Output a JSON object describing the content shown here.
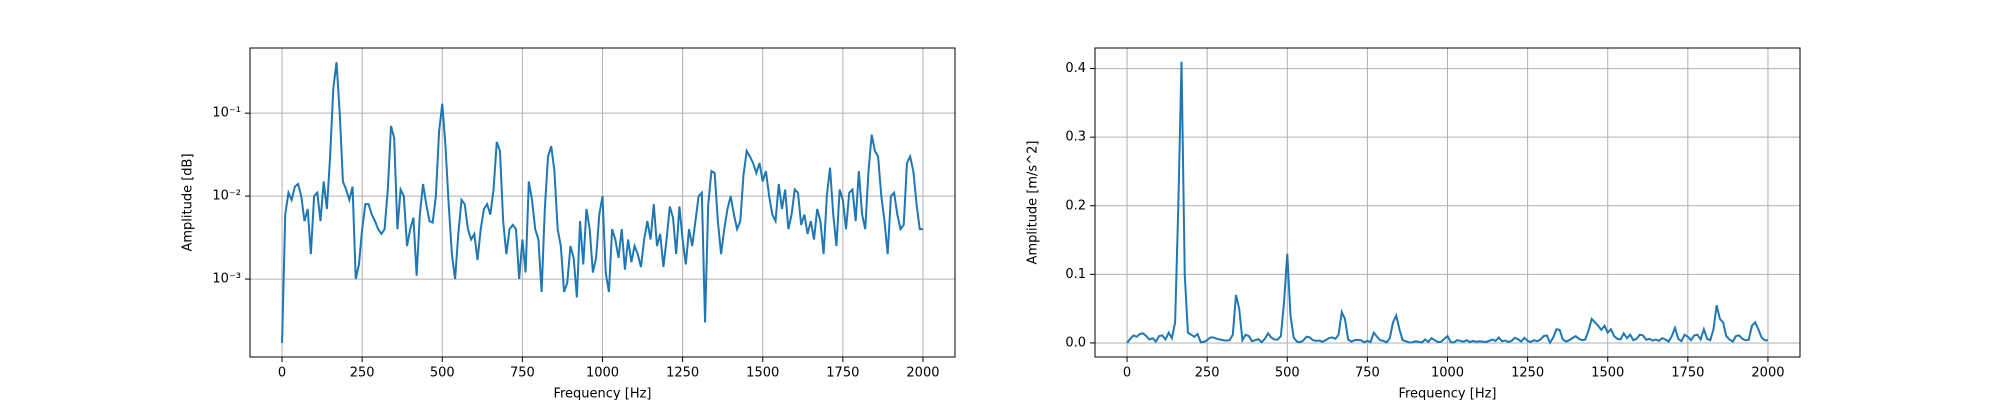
{
  "chart_data": [
    {
      "type": "line",
      "xlabel": "Frequency [Hz]",
      "ylabel": "Amplitude [dB]",
      "ylog": true,
      "grid": true,
      "color": "#1f77b4",
      "xlim": [
        -100,
        2100
      ],
      "xticks": [
        0,
        250,
        500,
        750,
        1000,
        1250,
        1500,
        1750,
        2000
      ],
      "ylim": [
        0.000115,
        0.61
      ],
      "yticks": [
        {
          "value": 0.001,
          "label": "10⁻³"
        },
        {
          "value": 0.01,
          "label": "10⁻²"
        },
        {
          "value": 0.1,
          "label": "10⁻¹"
        }
      ],
      "x": [
        0,
        10,
        20,
        30,
        40,
        50,
        60,
        70,
        80,
        90,
        100,
        110,
        120,
        130,
        140,
        150,
        160,
        170,
        180,
        190,
        200,
        210,
        220,
        230,
        240,
        250,
        260,
        270,
        280,
        290,
        300,
        310,
        320,
        330,
        340,
        350,
        360,
        370,
        380,
        390,
        400,
        410,
        420,
        430,
        440,
        450,
        460,
        470,
        480,
        490,
        500,
        510,
        520,
        530,
        540,
        550,
        560,
        570,
        580,
        590,
        600,
        610,
        620,
        630,
        640,
        650,
        660,
        670,
        680,
        690,
        700,
        710,
        720,
        730,
        740,
        750,
        760,
        770,
        780,
        790,
        800,
        810,
        820,
        830,
        840,
        850,
        860,
        870,
        880,
        890,
        900,
        910,
        920,
        930,
        940,
        950,
        960,
        970,
        980,
        990,
        1000,
        1010,
        1020,
        1030,
        1040,
        1050,
        1060,
        1070,
        1080,
        1090,
        1100,
        1110,
        1120,
        1130,
        1140,
        1150,
        1160,
        1170,
        1180,
        1190,
        1200,
        1210,
        1220,
        1230,
        1240,
        1250,
        1260,
        1270,
        1280,
        1290,
        1300,
        1310,
        1320,
        1330,
        1340,
        1350,
        1360,
        1370,
        1380,
        1390,
        1400,
        1410,
        1420,
        1430,
        1440,
        1450,
        1460,
        1470,
        1480,
        1490,
        1500,
        1510,
        1520,
        1530,
        1540,
        1550,
        1560,
        1570,
        1580,
        1590,
        1600,
        1610,
        1620,
        1630,
        1640,
        1650,
        1660,
        1670,
        1680,
        1690,
        1700,
        1710,
        1720,
        1730,
        1740,
        1750,
        1760,
        1770,
        1780,
        1790,
        1800,
        1810,
        1820,
        1830,
        1840,
        1850,
        1860,
        1870,
        1880,
        1890,
        1900,
        1910,
        1920,
        1930,
        1940,
        1950,
        1960,
        1970,
        1980,
        1990,
        2000
      ],
      "values": [
        0.00017,
        0.006,
        0.011,
        0.009,
        0.013,
        0.014,
        0.01,
        0.005,
        0.007,
        0.002,
        0.01,
        0.011,
        0.005,
        0.015,
        0.007,
        0.03,
        0.2,
        0.41,
        0.1,
        0.015,
        0.012,
        0.009,
        0.013,
        0.001,
        0.0015,
        0.004,
        0.008,
        0.008,
        0.006,
        0.005,
        0.004,
        0.0035,
        0.004,
        0.012,
        0.07,
        0.05,
        0.004,
        0.012,
        0.01,
        0.0025,
        0.004,
        0.0055,
        0.0011,
        0.006,
        0.014,
        0.008,
        0.005,
        0.0048,
        0.01,
        0.06,
        0.13,
        0.04,
        0.008,
        0.002,
        0.001,
        0.0035,
        0.009,
        0.008,
        0.004,
        0.003,
        0.0035,
        0.0017,
        0.004,
        0.007,
        0.008,
        0.006,
        0.012,
        0.045,
        0.035,
        0.005,
        0.002,
        0.004,
        0.0045,
        0.004,
        0.001,
        0.003,
        0.0012,
        0.015,
        0.009,
        0.004,
        0.003,
        0.0007,
        0.007,
        0.03,
        0.04,
        0.02,
        0.004,
        0.0025,
        0.0007,
        0.0009,
        0.0025,
        0.0018,
        0.0006,
        0.005,
        0.0015,
        0.007,
        0.004,
        0.0012,
        0.0018,
        0.006,
        0.01,
        0.0012,
        0.0007,
        0.004,
        0.003,
        0.0018,
        0.004,
        0.0013,
        0.003,
        0.0016,
        0.0025,
        0.002,
        0.0014,
        0.003,
        0.005,
        0.003,
        0.008,
        0.0025,
        0.0035,
        0.0014,
        0.003,
        0.0075,
        0.0055,
        0.002,
        0.0075,
        0.003,
        0.0015,
        0.004,
        0.0025,
        0.005,
        0.01,
        0.011,
        0.0003,
        0.008,
        0.02,
        0.019,
        0.005,
        0.002,
        0.004,
        0.007,
        0.01,
        0.006,
        0.004,
        0.005,
        0.018,
        0.035,
        0.03,
        0.025,
        0.019,
        0.025,
        0.015,
        0.02,
        0.01,
        0.006,
        0.005,
        0.014,
        0.007,
        0.012,
        0.004,
        0.006,
        0.012,
        0.011,
        0.0045,
        0.006,
        0.0035,
        0.005,
        0.003,
        0.007,
        0.005,
        0.002,
        0.01,
        0.022,
        0.006,
        0.0025,
        0.012,
        0.009,
        0.004,
        0.011,
        0.012,
        0.005,
        0.02,
        0.006,
        0.004,
        0.02,
        0.055,
        0.035,
        0.03,
        0.01,
        0.005,
        0.002,
        0.01,
        0.011,
        0.006,
        0.004,
        0.0045,
        0.025,
        0.03,
        0.02,
        0.008,
        0.004,
        0.004
      ]
    },
    {
      "type": "line",
      "xlabel": "Frequency [Hz]",
      "ylabel": "Amplitude [m/s^2]",
      "ylog": false,
      "grid": true,
      "color": "#1f77b4",
      "xlim": [
        -100,
        2100
      ],
      "xticks": [
        0,
        250,
        500,
        750,
        1000,
        1250,
        1500,
        1750,
        2000
      ],
      "ylim": [
        -0.0205,
        0.43
      ],
      "yticks": [
        {
          "value": 0,
          "label": "0.0"
        },
        0.1,
        0.2,
        0.3,
        0.4
      ],
      "x": [
        0,
        10,
        20,
        30,
        40,
        50,
        60,
        70,
        80,
        90,
        100,
        110,
        120,
        130,
        140,
        150,
        160,
        170,
        180,
        190,
        200,
        210,
        220,
        230,
        240,
        250,
        260,
        270,
        280,
        290,
        300,
        310,
        320,
        330,
        340,
        350,
        360,
        370,
        380,
        390,
        400,
        410,
        420,
        430,
        440,
        450,
        460,
        470,
        480,
        490,
        500,
        510,
        520,
        530,
        540,
        550,
        560,
        570,
        580,
        590,
        600,
        610,
        620,
        630,
        640,
        650,
        660,
        670,
        680,
        690,
        700,
        710,
        720,
        730,
        740,
        750,
        760,
        770,
        780,
        790,
        800,
        810,
        820,
        830,
        840,
        850,
        860,
        870,
        880,
        890,
        900,
        910,
        920,
        930,
        940,
        950,
        960,
        970,
        980,
        990,
        1000,
        1010,
        1020,
        1030,
        1040,
        1050,
        1060,
        1070,
        1080,
        1090,
        1100,
        1110,
        1120,
        1130,
        1140,
        1150,
        1160,
        1170,
        1180,
        1190,
        1200,
        1210,
        1220,
        1230,
        1240,
        1250,
        1260,
        1270,
        1280,
        1290,
        1300,
        1310,
        1320,
        1330,
        1340,
        1350,
        1360,
        1370,
        1380,
        1390,
        1400,
        1410,
        1420,
        1430,
        1440,
        1450,
        1460,
        1470,
        1480,
        1490,
        1500,
        1510,
        1520,
        1530,
        1540,
        1550,
        1560,
        1570,
        1580,
        1590,
        1600,
        1610,
        1620,
        1630,
        1640,
        1650,
        1660,
        1670,
        1680,
        1690,
        1700,
        1710,
        1720,
        1730,
        1740,
        1750,
        1760,
        1770,
        1780,
        1790,
        1800,
        1810,
        1820,
        1830,
        1840,
        1850,
        1860,
        1870,
        1880,
        1890,
        1900,
        1910,
        1920,
        1930,
        1940,
        1950,
        1960,
        1970,
        1980,
        1990,
        2000
      ],
      "values": [
        0.00017,
        0.006,
        0.011,
        0.009,
        0.013,
        0.014,
        0.01,
        0.005,
        0.007,
        0.002,
        0.01,
        0.011,
        0.005,
        0.015,
        0.007,
        0.03,
        0.2,
        0.41,
        0.1,
        0.015,
        0.012,
        0.009,
        0.013,
        0.001,
        0.0015,
        0.004,
        0.008,
        0.008,
        0.006,
        0.005,
        0.004,
        0.0035,
        0.004,
        0.012,
        0.07,
        0.05,
        0.004,
        0.012,
        0.01,
        0.0025,
        0.004,
        0.0055,
        0.0011,
        0.006,
        0.014,
        0.008,
        0.005,
        0.0048,
        0.01,
        0.06,
        0.13,
        0.04,
        0.008,
        0.002,
        0.001,
        0.0035,
        0.009,
        0.008,
        0.004,
        0.003,
        0.0035,
        0.0017,
        0.004,
        0.007,
        0.008,
        0.006,
        0.012,
        0.045,
        0.035,
        0.005,
        0.002,
        0.004,
        0.0045,
        0.004,
        0.001,
        0.003,
        0.0012,
        0.015,
        0.009,
        0.004,
        0.003,
        0.0007,
        0.007,
        0.03,
        0.04,
        0.02,
        0.004,
        0.0025,
        0.0007,
        0.0009,
        0.0025,
        0.0018,
        0.0006,
        0.005,
        0.0015,
        0.007,
        0.004,
        0.0012,
        0.0018,
        0.006,
        0.01,
        0.0012,
        0.0007,
        0.004,
        0.003,
        0.0018,
        0.004,
        0.0013,
        0.003,
        0.0016,
        0.0025,
        0.002,
        0.0014,
        0.003,
        0.005,
        0.003,
        0.008,
        0.0025,
        0.0035,
        0.0014,
        0.003,
        0.0075,
        0.0055,
        0.002,
        0.0075,
        0.003,
        0.0015,
        0.004,
        0.0025,
        0.005,
        0.01,
        0.011,
        0.0003,
        0.008,
        0.02,
        0.019,
        0.005,
        0.002,
        0.004,
        0.007,
        0.01,
        0.006,
        0.004,
        0.005,
        0.018,
        0.035,
        0.03,
        0.025,
        0.019,
        0.025,
        0.015,
        0.02,
        0.01,
        0.006,
        0.005,
        0.014,
        0.007,
        0.012,
        0.004,
        0.006,
        0.012,
        0.011,
        0.0045,
        0.006,
        0.0035,
        0.005,
        0.003,
        0.007,
        0.005,
        0.002,
        0.01,
        0.022,
        0.006,
        0.0025,
        0.012,
        0.009,
        0.004,
        0.011,
        0.012,
        0.005,
        0.02,
        0.006,
        0.004,
        0.02,
        0.055,
        0.035,
        0.03,
        0.01,
        0.005,
        0.002,
        0.01,
        0.011,
        0.006,
        0.004,
        0.0045,
        0.025,
        0.03,
        0.02,
        0.008,
        0.004,
        0.004
      ]
    }
  ]
}
